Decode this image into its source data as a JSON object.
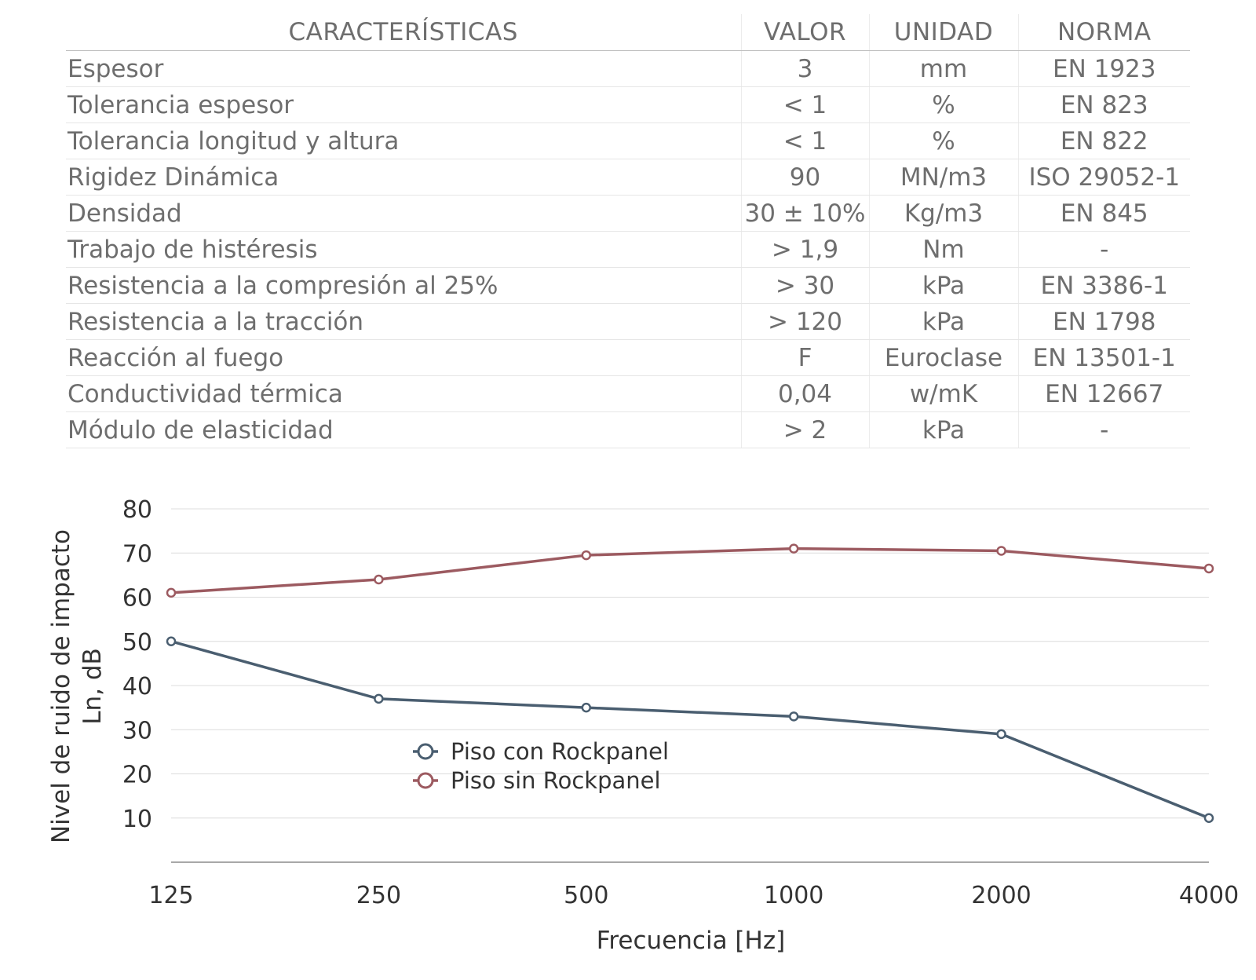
{
  "table": {
    "headers": [
      "CARACTERÍSTICAS",
      "VALOR",
      "UNIDAD",
      "NORMA"
    ],
    "rows": [
      [
        "Espesor",
        "3",
        "mm",
        "EN 1923"
      ],
      [
        "Tolerancia espesor",
        "< 1",
        "%",
        "EN 823"
      ],
      [
        "Tolerancia longitud y altura",
        "< 1",
        "%",
        "EN 822"
      ],
      [
        "Rigidez Dinámica",
        "90",
        "MN/m3",
        "ISO 29052-1"
      ],
      [
        "Densidad",
        "30 ± 10%",
        "Kg/m3",
        "EN 845"
      ],
      [
        "Trabajo de histéresis",
        "> 1,9",
        "Nm",
        "-"
      ],
      [
        "Resistencia a la compresión al 25%",
        "> 30",
        "kPa",
        "EN 3386-1"
      ],
      [
        "Resistencia a la tracción",
        "> 120",
        "kPa",
        "EN 1798"
      ],
      [
        "Reacción al fuego",
        "F",
        "Euroclase",
        "EN 13501-1"
      ],
      [
        "Conductividad térmica",
        "0,04",
        "w/mK",
        "EN 12667"
      ],
      [
        "Módulo de elasticidad",
        "> 2",
        "kPa",
        "-"
      ]
    ]
  },
  "chart_data": {
    "type": "line",
    "title": "",
    "categories": [
      "125",
      "250",
      "500",
      "1000",
      "2000",
      "4000"
    ],
    "xlabel": "Frecuencia [Hz]",
    "ylabel": [
      "Nivel de ruido de impacto",
      "Ln, dB"
    ],
    "ylim": [
      0,
      80
    ],
    "yticks": [
      10,
      20,
      30,
      40,
      50,
      60,
      70,
      80
    ],
    "grid": true,
    "legend_position": "center-left",
    "series": [
      {
        "name": "Piso con Rockpanel",
        "color": "#4a5e70",
        "values": [
          50,
          37,
          35,
          33,
          29,
          10
        ]
      },
      {
        "name": "Piso sin Rockpanel",
        "color": "#9c5a60",
        "values": [
          61,
          64,
          69.5,
          71,
          70.5,
          66.5
        ]
      }
    ]
  }
}
